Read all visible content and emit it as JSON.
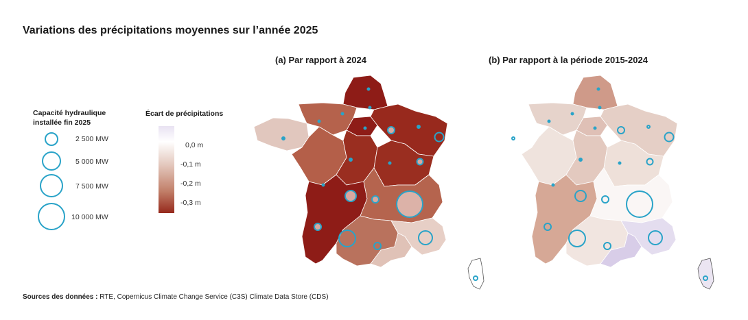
{
  "title": "Variations des précipitations moyennes sur l’année 2025",
  "maps": [
    {
      "title": "(a) Par rapport à 2024"
    },
    {
      "title": "(b) Par rapport à la période 2015-2024"
    }
  ],
  "legend_capacity": {
    "title": "Capacité hydraulique installée fin 2025",
    "items": [
      {
        "label": "2 500 MW",
        "value": 2500
      },
      {
        "label": "5 000 MW",
        "value": 5000
      },
      {
        "label": "7 500 MW",
        "value": 7500
      },
      {
        "label": "10 000 MW",
        "value": 10000
      }
    ],
    "circle_color": "#29a3c8"
  },
  "legend_ecart": {
    "title": "Écart de précipitations",
    "ticks": [
      "0,0 m",
      "-0,1 m",
      "-0,2 m",
      "-0,3 m"
    ],
    "colors": [
      "#e8e2f2",
      "#ffffff",
      "#e3c7bc",
      "#c17e68",
      "#96291c"
    ]
  },
  "footer": {
    "label": "Sources des données :",
    "text": " RTE, Copernicus Climate Change Service (C3S) Climate Data Store (CDS)"
  }
}
